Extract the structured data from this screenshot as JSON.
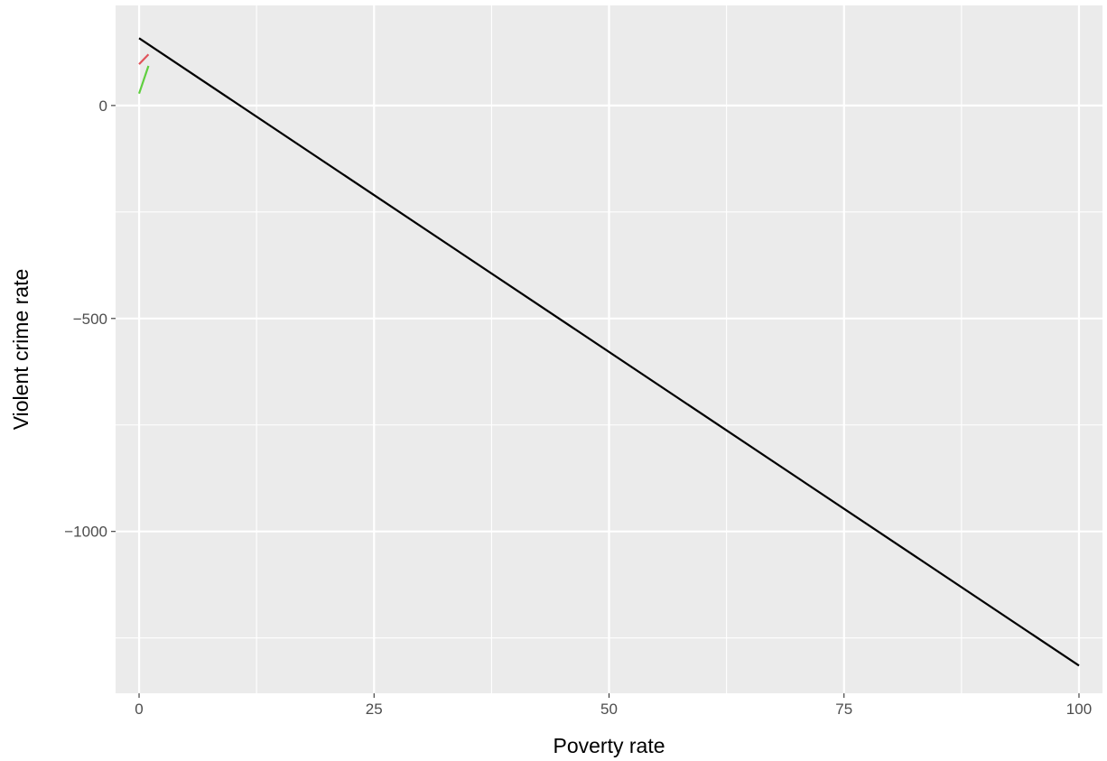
{
  "chart_data": {
    "type": "line",
    "title": "",
    "xlabel": "Poverty rate",
    "ylabel": "Violent crime rate",
    "xlim": [
      -2.5,
      102.5
    ],
    "ylim": [
      -1380,
      235
    ],
    "x_ticks": [
      0,
      25,
      50,
      75,
      100
    ],
    "x_tick_labels": [
      "0",
      "25",
      "50",
      "75",
      "100"
    ],
    "x_minor": [
      12.5,
      37.5,
      62.5,
      87.5
    ],
    "y_ticks": [
      0,
      -500,
      -1000
    ],
    "y_tick_labels": [
      "0",
      "−500",
      "−1000"
    ],
    "y_minor": [
      250,
      -250,
      -750,
      -1250
    ],
    "grid": true,
    "legend": "none",
    "colors": {
      "panel_background": "#ebebeb",
      "grid": "#ffffff",
      "tick_label": "#4d4d4d",
      "tick_mark": "#333333"
    },
    "series": [
      {
        "color": "#000000",
        "x": [
          0,
          100
        ],
        "y": [
          158,
          -1315
        ]
      },
      {
        "color": "#e0535b",
        "x": [
          0,
          1
        ],
        "y": [
          97,
          120
        ]
      },
      {
        "color": "#5fcf3f",
        "x": [
          0,
          1
        ],
        "y": [
          28,
          93
        ]
      }
    ]
  }
}
